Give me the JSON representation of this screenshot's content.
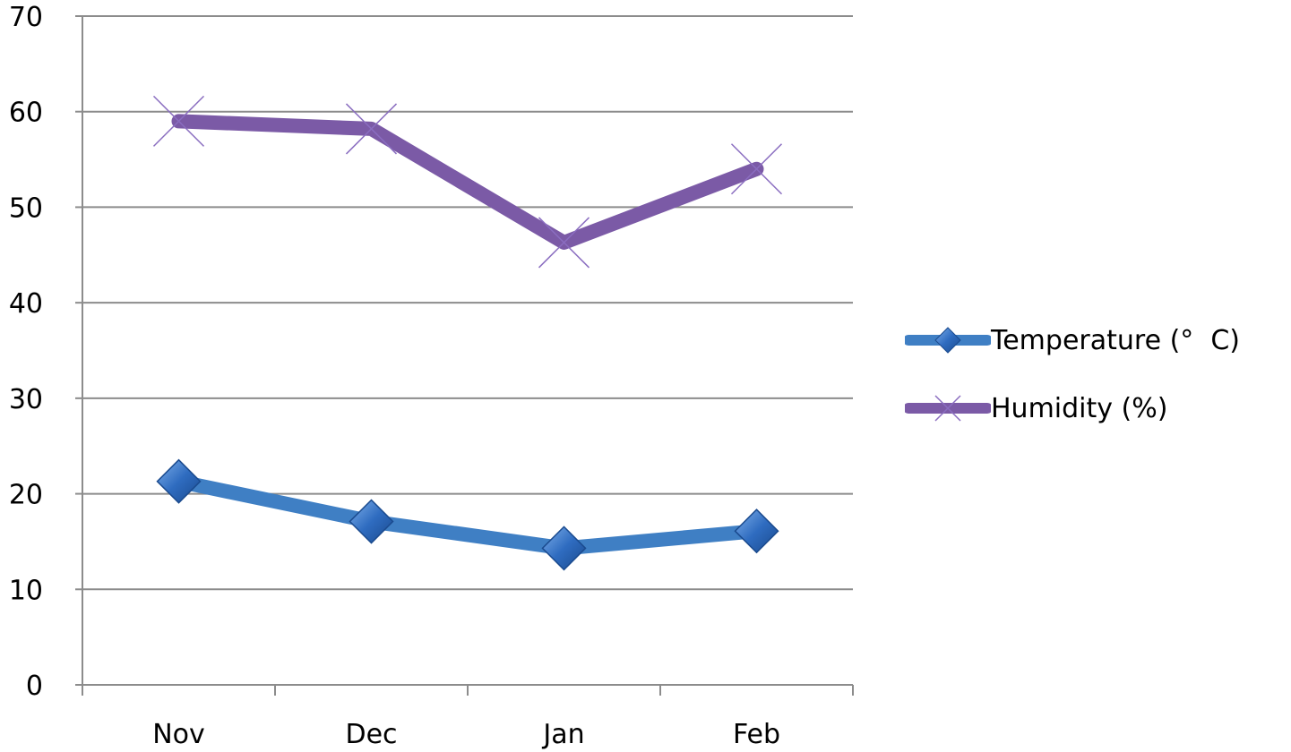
{
  "chart_data": {
    "type": "line",
    "categories": [
      "Nov",
      "Dec",
      "Jan",
      "Feb"
    ],
    "series": [
      {
        "name": "Temperature (°  C)",
        "values": [
          21.3,
          17.1,
          14.3,
          16.1
        ],
        "color": "#3f7fc4",
        "marker": "diamond"
      },
      {
        "name": "Humidity (%)",
        "values": [
          59,
          58.2,
          46.3,
          54
        ],
        "color": "#7b5aa6",
        "marker": "x"
      }
    ],
    "ylim": [
      0,
      70
    ],
    "yticks": [
      0,
      10,
      20,
      30,
      40,
      50,
      60,
      70
    ],
    "grid": true,
    "legend_position": "right"
  }
}
